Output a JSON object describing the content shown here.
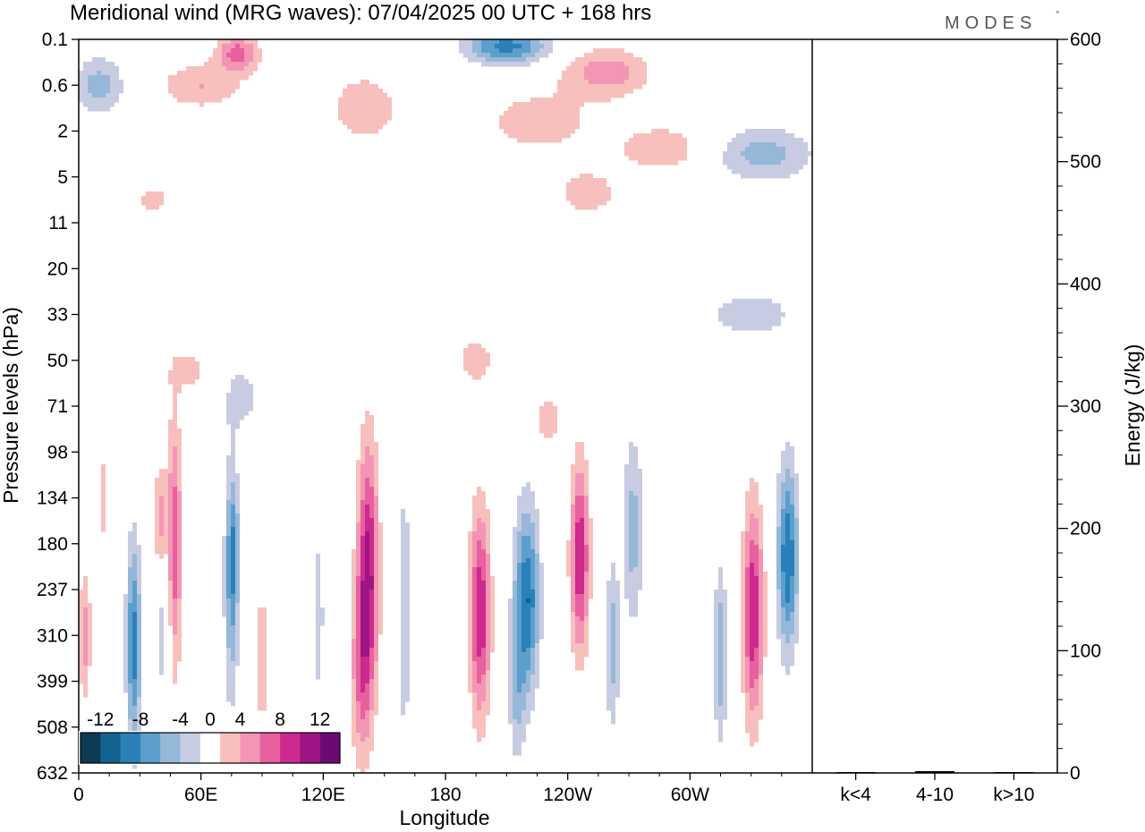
{
  "chart_data": {
    "type": "heatmap",
    "title": "Meridional wind (MRG waves):  07/04/2025  00 UTC  + 168 hrs",
    "brand": "MODES",
    "brand_mark": "°",
    "xlabel": "Longitude",
    "ylabel": "Pressure levels (hPa)",
    "y2label": "Energy (J/kg)",
    "x_ticks": [
      "0",
      "60E",
      "120E",
      "180",
      "120W",
      "60W"
    ],
    "x_tick_values": [
      0,
      60,
      120,
      180,
      240,
      300
    ],
    "xlim": [
      0,
      360
    ],
    "y_ticks": [
      "0.1",
      "0.6",
      "2",
      "5",
      "11",
      "20",
      "33",
      "50",
      "71",
      "98",
      "134",
      "180",
      "237",
      "310",
      "399",
      "508",
      "632"
    ],
    "y2_ticks": [
      "0",
      "100",
      "200",
      "300",
      "400",
      "500",
      "600"
    ],
    "y2_values": [
      0,
      100,
      200,
      300,
      400,
      500,
      600
    ],
    "y2lim": [
      0,
      600
    ],
    "energy_categories": [
      "k<4",
      "4-10",
      "k>10"
    ],
    "energy_values": [
      0.5,
      1.5,
      0.5
    ],
    "colorbar": {
      "labels": [
        "-12",
        "-8",
        "-4",
        "0",
        "4",
        "8",
        "12"
      ],
      "label_values": [
        -12,
        -8,
        -4,
        0,
        4,
        8,
        12
      ],
      "levels": [
        -14,
        -12,
        -10,
        -8,
        -6,
        -4,
        -2,
        2,
        4,
        6,
        8,
        10,
        12,
        14
      ],
      "colors": [
        "#0e3a55",
        "#14628f",
        "#2a80b9",
        "#5c9fcc",
        "#95b8d9",
        "#c8cce2",
        "#ffffff",
        "#f7c0bd",
        "#f395b4",
        "#e8609f",
        "#cc2a8e",
        "#a01585",
        "#6c0a74"
      ]
    },
    "blobs": [
      {
        "lon": 27,
        "lev": 13.2,
        "w": 3.5,
        "h": 2.2,
        "a": -9
      },
      {
        "lon": 42,
        "lev": 12.9,
        "w": 5.5,
        "h": 1.8,
        "a": -3
      },
      {
        "lon": 47,
        "lev": 11.2,
        "w": 3.5,
        "h": 2.8,
        "a": 8
      },
      {
        "lon": 40,
        "lev": 10.5,
        "w": 3,
        "h": 1.2,
        "a": 5
      },
      {
        "lon": 75,
        "lev": 12.0,
        "w": 3.5,
        "h": 2.5,
        "a": -6
      },
      {
        "lon": 76,
        "lev": 11.0,
        "w": 3,
        "h": 1.4,
        "a": -4
      },
      {
        "lon": 90,
        "lev": 13.5,
        "w": 4,
        "h": 2.0,
        "a": 3
      },
      {
        "lon": 118,
        "lev": 12.6,
        "w": 3.5,
        "h": 3.0,
        "a": -2.5
      },
      {
        "lon": 142,
        "lev": 11.7,
        "w": 5,
        "h": 2.8,
        "a": 11
      },
      {
        "lon": 138,
        "lev": 13.8,
        "w": 4.5,
        "h": 2.0,
        "a": 5
      },
      {
        "lon": 160,
        "lev": 12.5,
        "w": 3.5,
        "h": 3.8,
        "a": -3
      },
      {
        "lon": 197,
        "lev": 12.5,
        "w": 5,
        "h": 2.2,
        "a": 10
      },
      {
        "lon": 220,
        "lev": 12.2,
        "w": 6,
        "h": 2.0,
        "a": -10
      },
      {
        "lon": 215,
        "lev": 14.2,
        "w": 4,
        "h": 1.6,
        "a": -4
      },
      {
        "lon": 246,
        "lev": 11.3,
        "w": 4.5,
        "h": 2.0,
        "a": 10
      },
      {
        "lon": 272,
        "lev": 10.7,
        "w": 5,
        "h": 2.0,
        "a": -5
      },
      {
        "lon": 262,
        "lev": 13.2,
        "w": 3.5,
        "h": 1.8,
        "a": -5
      },
      {
        "lon": 315,
        "lev": 13.4,
        "w": 3.2,
        "h": 1.8,
        "a": -6
      },
      {
        "lon": 331,
        "lev": 12.5,
        "w": 5,
        "h": 2.3,
        "a": 10
      },
      {
        "lon": 348,
        "lev": 11.3,
        "w": 5,
        "h": 2.0,
        "a": -10
      },
      {
        "lon": 3,
        "lev": 13.0,
        "w": 3,
        "h": 1.4,
        "a": 5
      },
      {
        "lon": 12,
        "lev": 10.0,
        "w": 3,
        "h": 1.2,
        "a": 3
      },
      {
        "lon": 230,
        "lev": 8.3,
        "w": 8,
        "h": 0.6,
        "a": 3
      },
      {
        "lon": 195,
        "lev": 7.0,
        "w": 10,
        "h": 0.6,
        "a": 3
      },
      {
        "lon": 80,
        "lev": 7.8,
        "w": 12,
        "h": 1.0,
        "a": -2.5
      },
      {
        "lon": 55,
        "lev": 7.2,
        "w": 12,
        "h": 0.6,
        "a": 2.5
      },
      {
        "lon": 330,
        "lev": 6.0,
        "w": 25,
        "h": 0.6,
        "a": -3
      },
      {
        "lon": 225,
        "lev": 1.8,
        "w": 40,
        "h": 1.0,
        "a": 2.5
      },
      {
        "lon": 210,
        "lev": 0.15,
        "w": 20,
        "h": 0.4,
        "a": -9
      },
      {
        "lon": 260,
        "lev": 0.7,
        "w": 20,
        "h": 0.5,
        "a": 5
      },
      {
        "lon": 78,
        "lev": 0.3,
        "w": 10,
        "h": 0.4,
        "a": 7
      },
      {
        "lon": 10,
        "lev": 1.0,
        "w": 12,
        "h": 0.6,
        "a": -5
      },
      {
        "lon": 60,
        "lev": 1.0,
        "w": 20,
        "h": 0.5,
        "a": 4
      },
      {
        "lon": 290,
        "lev": 2.4,
        "w": 25,
        "h": 0.6,
        "a": 3
      },
      {
        "lon": 335,
        "lev": 2.5,
        "w": 25,
        "h": 0.6,
        "a": -5
      },
      {
        "lon": 40,
        "lev": 3.5,
        "w": 20,
        "h": 0.6,
        "a": 2.5
      },
      {
        "lon": 250,
        "lev": 3.4,
        "w": 20,
        "h": 0.6,
        "a": 2.5
      },
      {
        "lon": 60,
        "lev": 3.8,
        "w": 15,
        "h": 0.7,
        "a": -2.5
      },
      {
        "lon": 140,
        "lev": 1.5,
        "w": 20,
        "h": 0.9,
        "a": 3
      }
    ]
  }
}
